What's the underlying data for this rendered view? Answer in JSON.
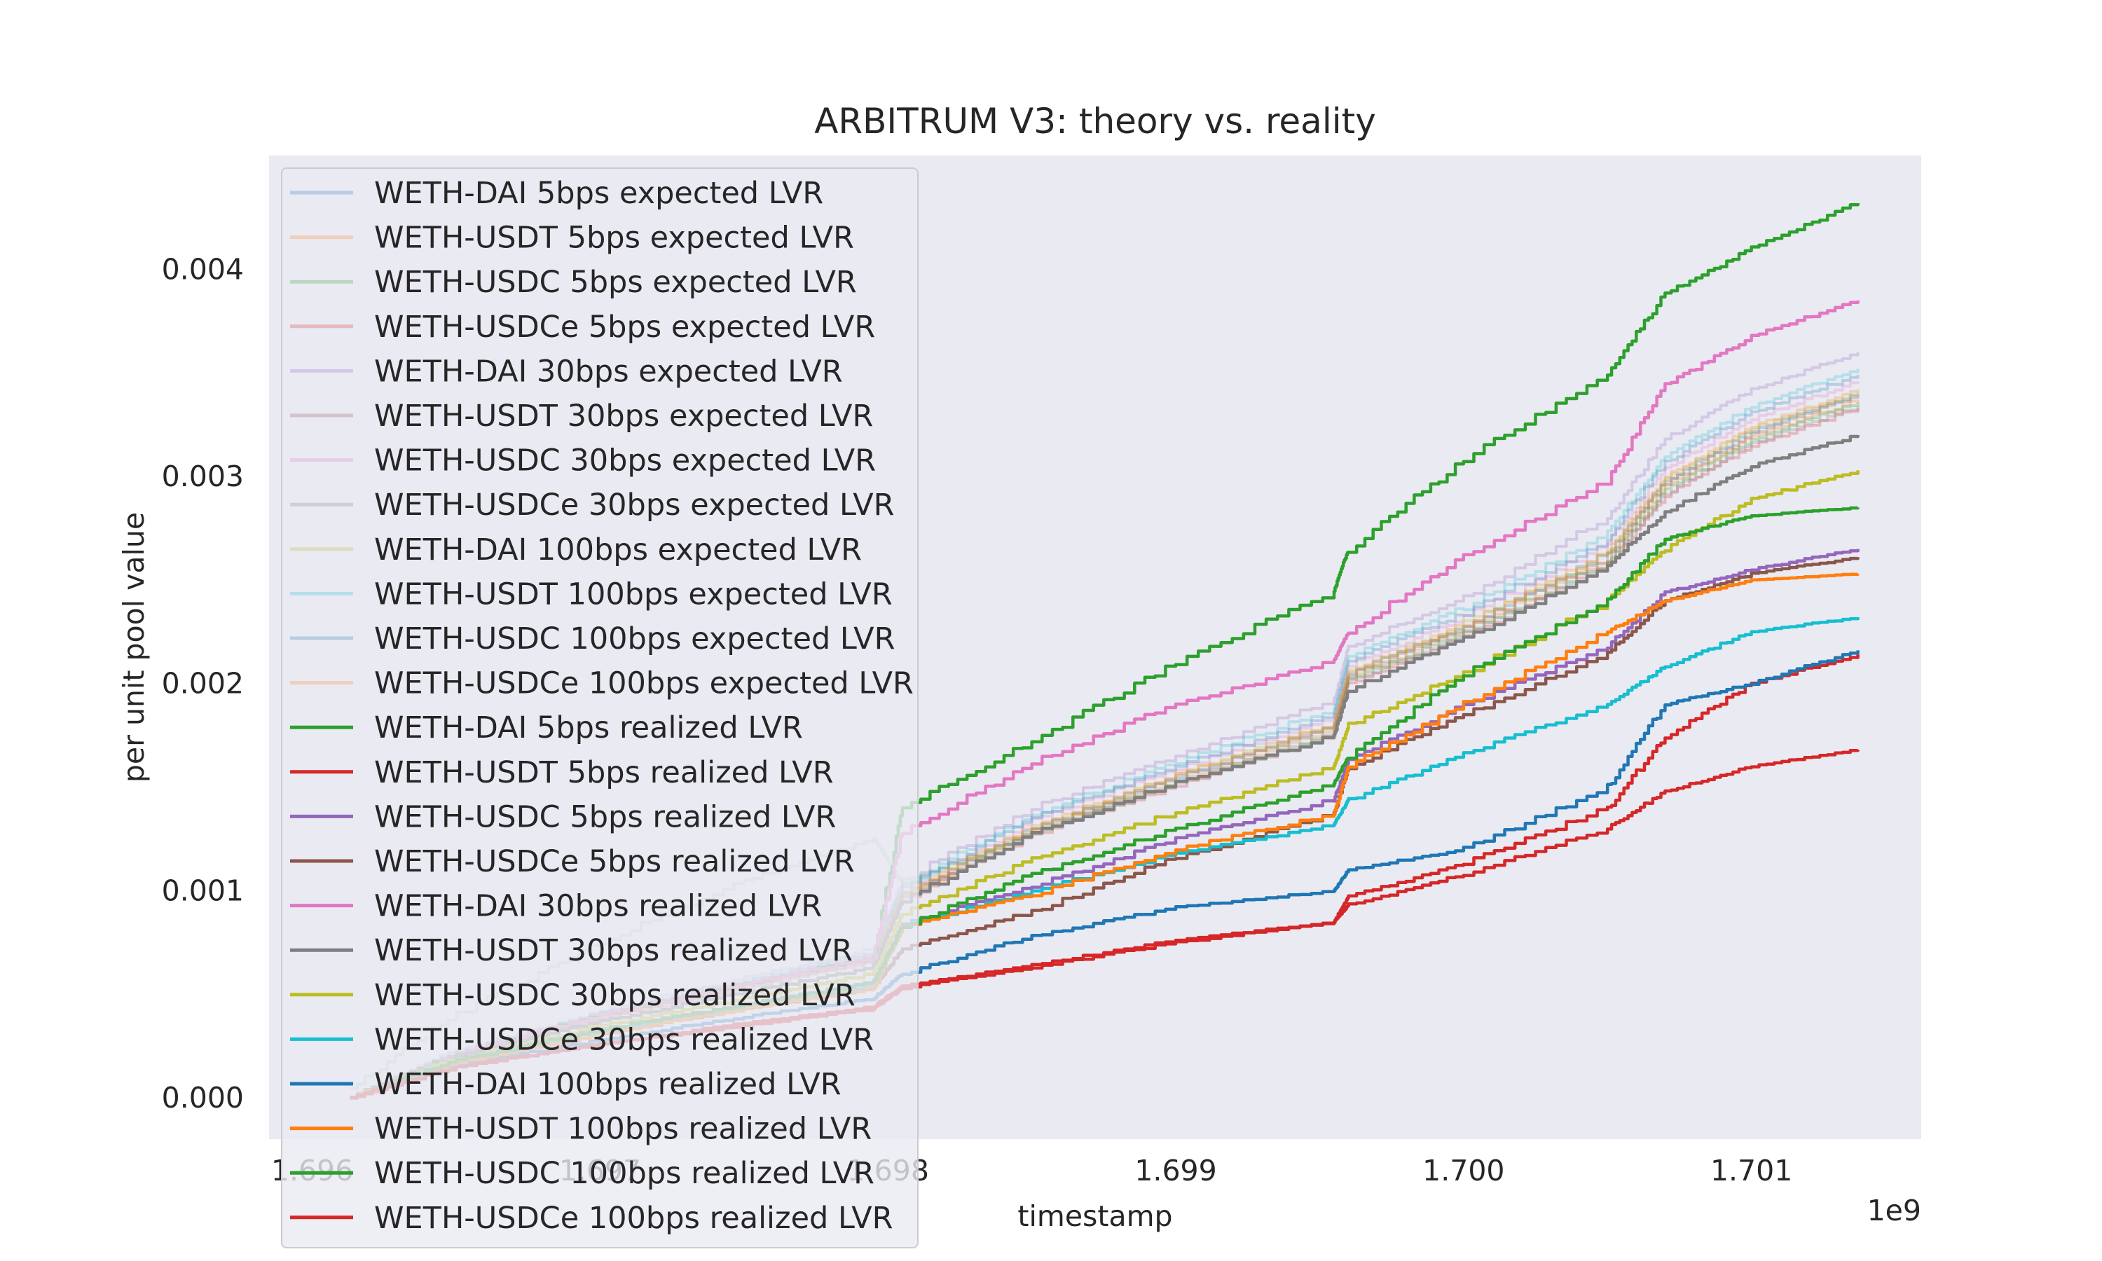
{
  "chart_data": {
    "type": "line",
    "title": "ARBITRUM V3: theory vs. reality",
    "xlabel": "timestamp",
    "ylabel": "per unit pool value",
    "x_offset_label": "1e9",
    "xlim": [
      1.69585,
      1.70159
    ],
    "ylim": [
      -0.0002,
      0.00455
    ],
    "x_ticks": [
      1.696,
      1.697,
      1.698,
      1.699,
      1.7,
      1.701
    ],
    "x_tick_labels": [
      "1.696",
      "1.697",
      "1.698",
      "1.699",
      "1.700",
      "1.701"
    ],
    "y_ticks": [
      0.0,
      0.001,
      0.002,
      0.003,
      0.004
    ],
    "y_tick_labels": [
      "0.000",
      "0.001",
      "0.002",
      "0.003",
      "0.004"
    ],
    "grid": false,
    "background": "#eaeaf2",
    "legend_position": "upper-left",
    "x": [
      1.69613,
      1.6965,
      1.697,
      1.6975,
      1.69795,
      1.69805,
      1.6985,
      1.699,
      1.69955,
      1.6996,
      1.7,
      1.7005,
      1.7007,
      1.701,
      1.70137
    ],
    "series": [
      {
        "name": "WETH-DAI 5bps expected LVR",
        "color": "#1f77b4",
        "opacity": 0.25,
        "values": [
          0.0,
          0.00022,
          0.0004,
          0.00055,
          0.00068,
          0.00098,
          0.0013,
          0.00155,
          0.0018,
          0.00205,
          0.00228,
          0.00263,
          0.00298,
          0.00322,
          0.0034
        ]
      },
      {
        "name": "WETH-USDT 5bps expected LVR",
        "color": "#ff7f0e",
        "opacity": 0.25,
        "values": [
          0.0,
          0.00021,
          0.00039,
          0.00054,
          0.00067,
          0.00097,
          0.00129,
          0.00153,
          0.00178,
          0.00203,
          0.00226,
          0.0026,
          0.00295,
          0.00319,
          0.00337
        ]
      },
      {
        "name": "WETH-USDC 5bps expected LVR",
        "color": "#2ca02c",
        "opacity": 0.25,
        "values": [
          5e-05,
          0.0004,
          0.00075,
          0.00105,
          0.00125,
          0.00103,
          0.00128,
          0.00152,
          0.00176,
          0.00202,
          0.00225,
          0.00259,
          0.00294,
          0.00318,
          0.00336
        ]
      },
      {
        "name": "WETH-USDCe 5bps expected LVR",
        "color": "#d62728",
        "opacity": 0.25,
        "values": [
          0.0,
          0.0002,
          0.00038,
          0.00053,
          0.00066,
          0.00096,
          0.00127,
          0.00151,
          0.00175,
          0.002,
          0.00223,
          0.00257,
          0.00291,
          0.00315,
          0.00333
        ]
      },
      {
        "name": "WETH-DAI 30bps expected LVR",
        "color": "#9467bd",
        "opacity": 0.25,
        "values": [
          0.0,
          0.00023,
          0.00042,
          0.00058,
          0.00072,
          0.00105,
          0.0014,
          0.00165,
          0.00192,
          0.00218,
          0.00242,
          0.0028,
          0.00318,
          0.00342,
          0.0036
        ]
      },
      {
        "name": "WETH-USDT 30bps expected LVR",
        "color": "#8c564b",
        "opacity": 0.25,
        "values": [
          0.0,
          0.00021,
          0.00039,
          0.00054,
          0.00067,
          0.00098,
          0.0013,
          0.00155,
          0.0018,
          0.00204,
          0.00227,
          0.00262,
          0.00297,
          0.00321,
          0.00339
        ]
      },
      {
        "name": "WETH-USDC 30bps expected LVR",
        "color": "#e377c2",
        "opacity": 0.25,
        "values": [
          0.0,
          0.00022,
          0.00041,
          0.00056,
          0.0007,
          0.00101,
          0.00134,
          0.00159,
          0.00184,
          0.00209,
          0.00232,
          0.00268,
          0.00304,
          0.00328,
          0.00346
        ]
      },
      {
        "name": "WETH-USDCe 30bps expected LVR",
        "color": "#7f7f7f",
        "opacity": 0.25,
        "values": [
          0.0,
          0.0002,
          0.00038,
          0.00053,
          0.00066,
          0.00097,
          0.00128,
          0.00152,
          0.00177,
          0.00201,
          0.00224,
          0.00258,
          0.00292,
          0.00316,
          0.00334
        ]
      },
      {
        "name": "WETH-DAI 100bps expected LVR",
        "color": "#bcbd22",
        "opacity": 0.25,
        "values": [
          0.0,
          0.00021,
          0.0004,
          0.00055,
          0.00068,
          0.00099,
          0.00131,
          0.00156,
          0.00181,
          0.00206,
          0.00229,
          0.00264,
          0.00299,
          0.00323,
          0.00341
        ]
      },
      {
        "name": "WETH-USDT 100bps expected LVR",
        "color": "#17becf",
        "opacity": 0.25,
        "values": [
          0.0,
          0.00022,
          0.00041,
          0.00057,
          0.00071,
          0.00103,
          0.00137,
          0.00162,
          0.00188,
          0.00213,
          0.00237,
          0.00273,
          0.0031,
          0.00334,
          0.00352
        ]
      },
      {
        "name": "WETH-USDC 100bps expected LVR",
        "color": "#1f77b4",
        "opacity": 0.25,
        "values": [
          0.0,
          0.00022,
          0.00041,
          0.00056,
          0.0007,
          0.00102,
          0.00135,
          0.0016,
          0.00186,
          0.00211,
          0.00234,
          0.0027,
          0.00307,
          0.00331,
          0.00349
        ]
      },
      {
        "name": "WETH-USDCe 100bps expected LVR",
        "color": "#ff7f0e",
        "opacity": 0.25,
        "values": [
          0.0,
          0.00021,
          0.00039,
          0.00055,
          0.00068,
          0.00099,
          0.00131,
          0.00156,
          0.00181,
          0.00206,
          0.00229,
          0.00264,
          0.003,
          0.00324,
          0.00342
        ]
      },
      {
        "name": "WETH-DAI 5bps realized LVR",
        "color": "#2ca02c",
        "opacity": 1,
        "values": [
          0.0,
          0.00021,
          0.0004,
          0.00055,
          0.00068,
          0.0014,
          0.00172,
          0.0021,
          0.00245,
          0.00265,
          0.00308,
          0.0035,
          0.00388,
          0.0041,
          0.00432
        ]
      },
      {
        "name": "WETH-USDT 5bps realized LVR",
        "color": "#d62728",
        "opacity": 1,
        "values": [
          0.0,
          0.00015,
          0.00026,
          0.00036,
          0.00044,
          0.00054,
          0.00064,
          0.00076,
          0.00085,
          0.00097,
          0.00113,
          0.0014,
          0.00174,
          0.002,
          0.00214
        ]
      },
      {
        "name": "WETH-USDC 5bps realized LVR",
        "color": "#9467bd",
        "opacity": 1,
        "values": [
          0.0,
          0.00018,
          0.00033,
          0.00045,
          0.00056,
          0.00084,
          0.00102,
          0.00125,
          0.00144,
          0.00163,
          0.0019,
          0.00218,
          0.00244,
          0.00255,
          0.00265
        ]
      },
      {
        "name": "WETH-USDCe 5bps realized LVR",
        "color": "#8c564b",
        "opacity": 1,
        "values": [
          0.0,
          0.00017,
          0.00031,
          0.00043,
          0.00053,
          0.00072,
          0.0009,
          0.00116,
          0.00137,
          0.00159,
          0.00185,
          0.00215,
          0.0024,
          0.00253,
          0.00261
        ]
      },
      {
        "name": "WETH-DAI 30bps realized LVR",
        "color": "#e377c2",
        "opacity": 1,
        "values": [
          0.0,
          0.00021,
          0.0004,
          0.00055,
          0.00068,
          0.00128,
          0.00162,
          0.0019,
          0.00211,
          0.00225,
          0.00262,
          0.00298,
          0.00344,
          0.00368,
          0.00385
        ]
      },
      {
        "name": "WETH-USDT 30bps realized LVR",
        "color": "#7f7f7f",
        "opacity": 1,
        "values": [
          0.0,
          0.0002,
          0.00037,
          0.00051,
          0.00063,
          0.00095,
          0.00128,
          0.00152,
          0.00175,
          0.00197,
          0.00222,
          0.00257,
          0.00283,
          0.00305,
          0.0032
        ]
      },
      {
        "name": "WETH-USDC 30bps realized LVR",
        "color": "#bcbd22",
        "opacity": 1,
        "values": [
          0.0,
          0.00019,
          0.00035,
          0.00048,
          0.0006,
          0.00089,
          0.00115,
          0.00138,
          0.0016,
          0.0018,
          0.00205,
          0.0024,
          0.00265,
          0.00289,
          0.00303
        ]
      },
      {
        "name": "WETH-USDCe 30bps realized LVR",
        "color": "#17becf",
        "opacity": 1,
        "values": [
          0.0,
          0.00018,
          0.00032,
          0.00044,
          0.00054,
          0.00083,
          0.001,
          0.00118,
          0.00132,
          0.00144,
          0.00166,
          0.0019,
          0.00208,
          0.00225,
          0.00232
        ]
      },
      {
        "name": "WETH-DAI 100bps realized LVR",
        "color": "#1f77b4",
        "opacity": 1,
        "values": [
          0.0,
          0.00016,
          0.00028,
          0.00039,
          0.00048,
          0.0006,
          0.00078,
          0.00092,
          0.001,
          0.0011,
          0.0012,
          0.0015,
          0.0019,
          0.002,
          0.00216
        ]
      },
      {
        "name": "WETH-USDT 100bps realized LVR",
        "color": "#ff7f0e",
        "opacity": 1,
        "values": [
          0.0,
          0.00017,
          0.00031,
          0.00043,
          0.00053,
          0.00083,
          0.00098,
          0.0012,
          0.00137,
          0.0016,
          0.0019,
          0.00225,
          0.0024,
          0.0025,
          0.00253
        ]
      },
      {
        "name": "WETH-USDC 100bps realized LVR",
        "color": "#2ca02c",
        "opacity": 1,
        "values": [
          0.0,
          0.00018,
          0.00033,
          0.00045,
          0.00056,
          0.00083,
          0.00108,
          0.0013,
          0.00152,
          0.00165,
          0.00205,
          0.0024,
          0.0027,
          0.00281,
          0.00285
        ]
      },
      {
        "name": "WETH-USDCe 100bps realized LVR",
        "color": "#d62728",
        "opacity": 1,
        "values": [
          0.0,
          0.00015,
          0.00026,
          0.00035,
          0.00043,
          0.00053,
          0.00063,
          0.00075,
          0.00085,
          0.00093,
          0.00108,
          0.0013,
          0.00148,
          0.0016,
          0.00168
        ]
      }
    ]
  }
}
